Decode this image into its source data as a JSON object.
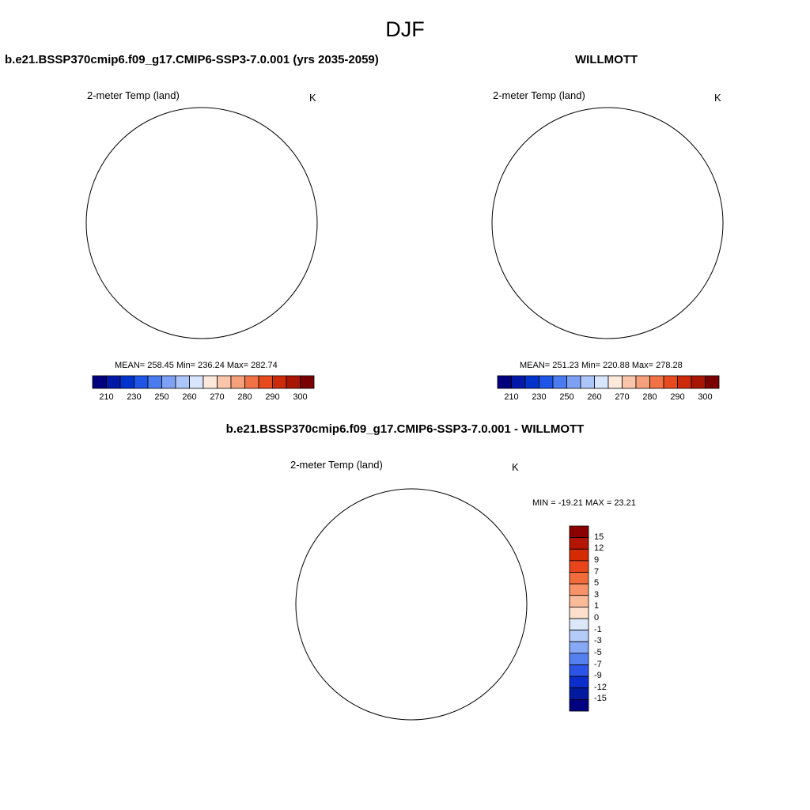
{
  "figure": {
    "title": "DJF"
  },
  "panels": {
    "model": {
      "title": "b.e21.BSSP370cmip6.f09_g17.CMIP6-SSP3-7.0.001 (yrs 2035-2059)",
      "variable": "2-meter Temp (land)",
      "units": "K",
      "stats": "MEAN= 258.45  Min= 236.24  Max= 282.74"
    },
    "obs": {
      "title": "WILLMOTT",
      "variable": "2-meter Temp (land)",
      "units": "K",
      "stats": "MEAN= 251.23  Min= 220.88  Max= 278.28"
    },
    "diff": {
      "title": "b.e21.BSSP370cmip6.f09_g17.CMIP6-SSP3-7.0.001 - WILLMOTT",
      "variable": "2-meter Temp (land)",
      "units": "K",
      "stats": "MIN = -19.21 MAX =  23.21"
    }
  },
  "abs_colorbar": {
    "colors": [
      "#00007f",
      "#0019a8",
      "#0033cc",
      "#1f55e6",
      "#4a7cf0",
      "#7ea1f5",
      "#adc6fa",
      "#d7e6fc",
      "#fde8dc",
      "#f9c6ab",
      "#f7a07c",
      "#f27248",
      "#e64a1e",
      "#cc2a0a",
      "#a81505",
      "#7a0000"
    ],
    "tick_labels": [
      "210",
      "230",
      "250",
      "260",
      "270",
      "280",
      "290",
      "300"
    ]
  },
  "diff_colorbar": {
    "colors": [
      "#8b0000",
      "#b31500",
      "#d42c00",
      "#e8451a",
      "#f26b3a",
      "#f79366",
      "#fbba98",
      "#fde0cc",
      "#dce8fa",
      "#b4caf7",
      "#86a8f5",
      "#5580f0",
      "#2a55e6",
      "#0a2dcc",
      "#001aa0",
      "#000080"
    ],
    "tick_labels": [
      "15",
      "12",
      "9",
      "7",
      "5",
      "3",
      "1",
      "0",
      "-1",
      "-3",
      "-5",
      "-7",
      "-9",
      "-12",
      "-15"
    ]
  },
  "maps": {
    "model": {
      "ocean": "#ffffff",
      "na_west": "#c9dcf9",
      "canada": "#7fa3f3",
      "canada_deep": "#3a62e0",
      "greenland": "#2f57dc",
      "siberia": "#5d87ef",
      "eurasia_mid": "#8fb0f5",
      "eurasia_south": "#d6e4fc",
      "europe": "#f9d2bc",
      "europe_south": "#f6b494",
      "alaska": "#b8cef8",
      "warm_patch": "#fbd9c6"
    },
    "obs": {
      "ocean": "#ffffff",
      "na_west": "#a7c2f7",
      "canada": "#5a82ee",
      "canada_deep": "#2d52d8",
      "greenland": "#1d44cf",
      "siberia": "#3060e0",
      "eurasia_mid": "#6b90f1",
      "eurasia_south": "#cfe0fb",
      "europe": "#e3edfd",
      "europe_south": "#f9cdb4",
      "alaska": "#90b0f5",
      "warm_patch": "#f3a985"
    },
    "diff": {
      "ocean": "#ffffff",
      "na_west": "#e4501f",
      "canada": "#d9380e",
      "canada_deep": "#c02a06",
      "greenland": "#e8f0fd",
      "siberia": "#c42a04",
      "eurasia_mid": "#e04a18",
      "eurasia_south": "#ee6a38",
      "europe": "#f38658",
      "europe_south": "#f59b72",
      "alaska": "#e85a2a",
      "warm_patch": "#9b1200"
    }
  }
}
